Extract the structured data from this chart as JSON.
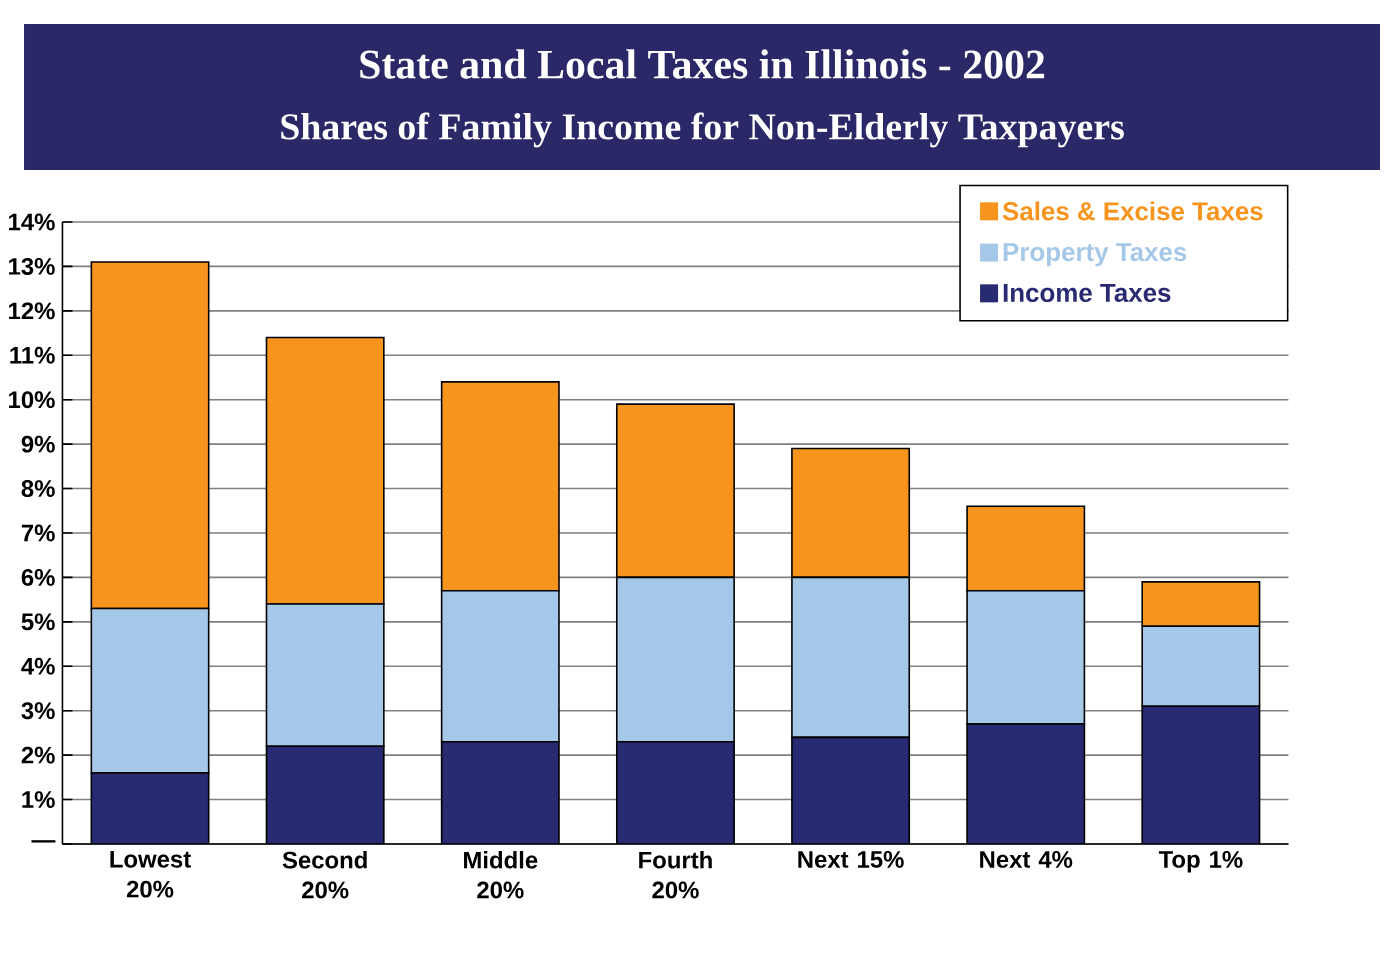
{
  "chart_data": {
    "type": "bar",
    "stacked": true,
    "title": "State and Local Taxes in Illinois - 2002",
    "subtitle": "Shares of Family Income for Non-Elderly Taxpayers",
    "categories": [
      "Lowest 20%",
      "Second 20%",
      "Middle 20%",
      "Fourth 20%",
      "Next 15%",
      "Next 4%",
      "Top 1%"
    ],
    "series": [
      {
        "name": "Income Taxes",
        "color": "#282a72",
        "values": [
          1.6,
          2.2,
          2.3,
          2.3,
          2.4,
          2.7,
          3.1
        ]
      },
      {
        "name": "Property Taxes",
        "color": "#a6c8e8",
        "values": [
          3.7,
          3.2,
          3.4,
          3.7,
          3.6,
          3.0,
          1.8
        ]
      },
      {
        "name": "Sales & Excise Taxes",
        "color": "#f7941d",
        "values": [
          7.8,
          6.0,
          4.7,
          3.9,
          2.9,
          1.9,
          1.0
        ]
      }
    ],
    "ylim": [
      0,
      14
    ],
    "yticks": [
      {
        "value": 0,
        "label": "—"
      },
      {
        "value": 1,
        "label": "1%"
      },
      {
        "value": 2,
        "label": "2%"
      },
      {
        "value": 3,
        "label": "3%"
      },
      {
        "value": 4,
        "label": "4%"
      },
      {
        "value": 5,
        "label": "5%"
      },
      {
        "value": 6,
        "label": "6%"
      },
      {
        "value": 7,
        "label": "7%"
      },
      {
        "value": 8,
        "label": "8%"
      },
      {
        "value": 9,
        "label": "9%"
      },
      {
        "value": 10,
        "label": "10%"
      },
      {
        "value": 11,
        "label": "11%"
      },
      {
        "value": 12,
        "label": "12%"
      },
      {
        "value": 13,
        "label": "13%"
      },
      {
        "value": 14,
        "label": "14%"
      }
    ],
    "grid": "y",
    "legend": "top right"
  }
}
